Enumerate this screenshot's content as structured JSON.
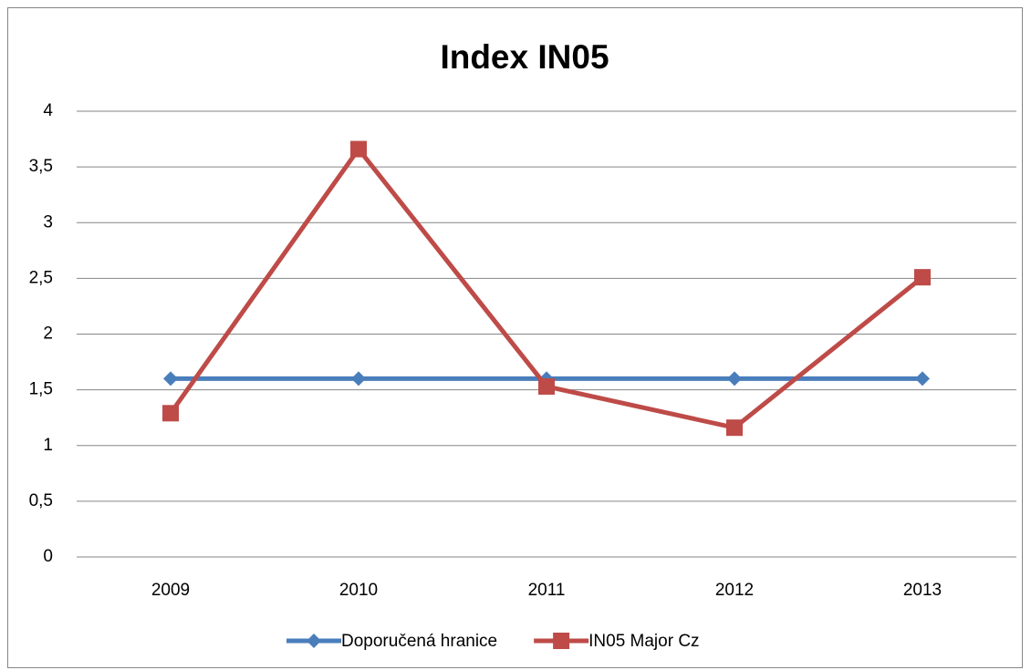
{
  "chart_data": {
    "type": "line",
    "title": "Index IN05",
    "categories": [
      "2009",
      "2010",
      "2011",
      "2012",
      "2013"
    ],
    "series": [
      {
        "name": "Doporučená hranice",
        "color": "#4a7ebb",
        "marker": "diamond",
        "values": [
          1.6,
          1.6,
          1.6,
          1.6,
          1.6
        ]
      },
      {
        "name": "IN05 Major Cz",
        "color": "#be4b48",
        "marker": "square",
        "values": [
          1.29,
          3.66,
          1.53,
          1.16,
          2.51
        ]
      }
    ],
    "ylim": [
      0,
      4
    ],
    "yticks": [
      0,
      {
        "value": 0.5,
        "label": "0,5"
      },
      1,
      {
        "value": 1.5,
        "label": "1,5"
      },
      2,
      {
        "value": 2.5,
        "label": "2,5"
      },
      3,
      {
        "value": 3.5,
        "label": "3,5"
      },
      4
    ],
    "grid": true,
    "legend": "bottom"
  }
}
